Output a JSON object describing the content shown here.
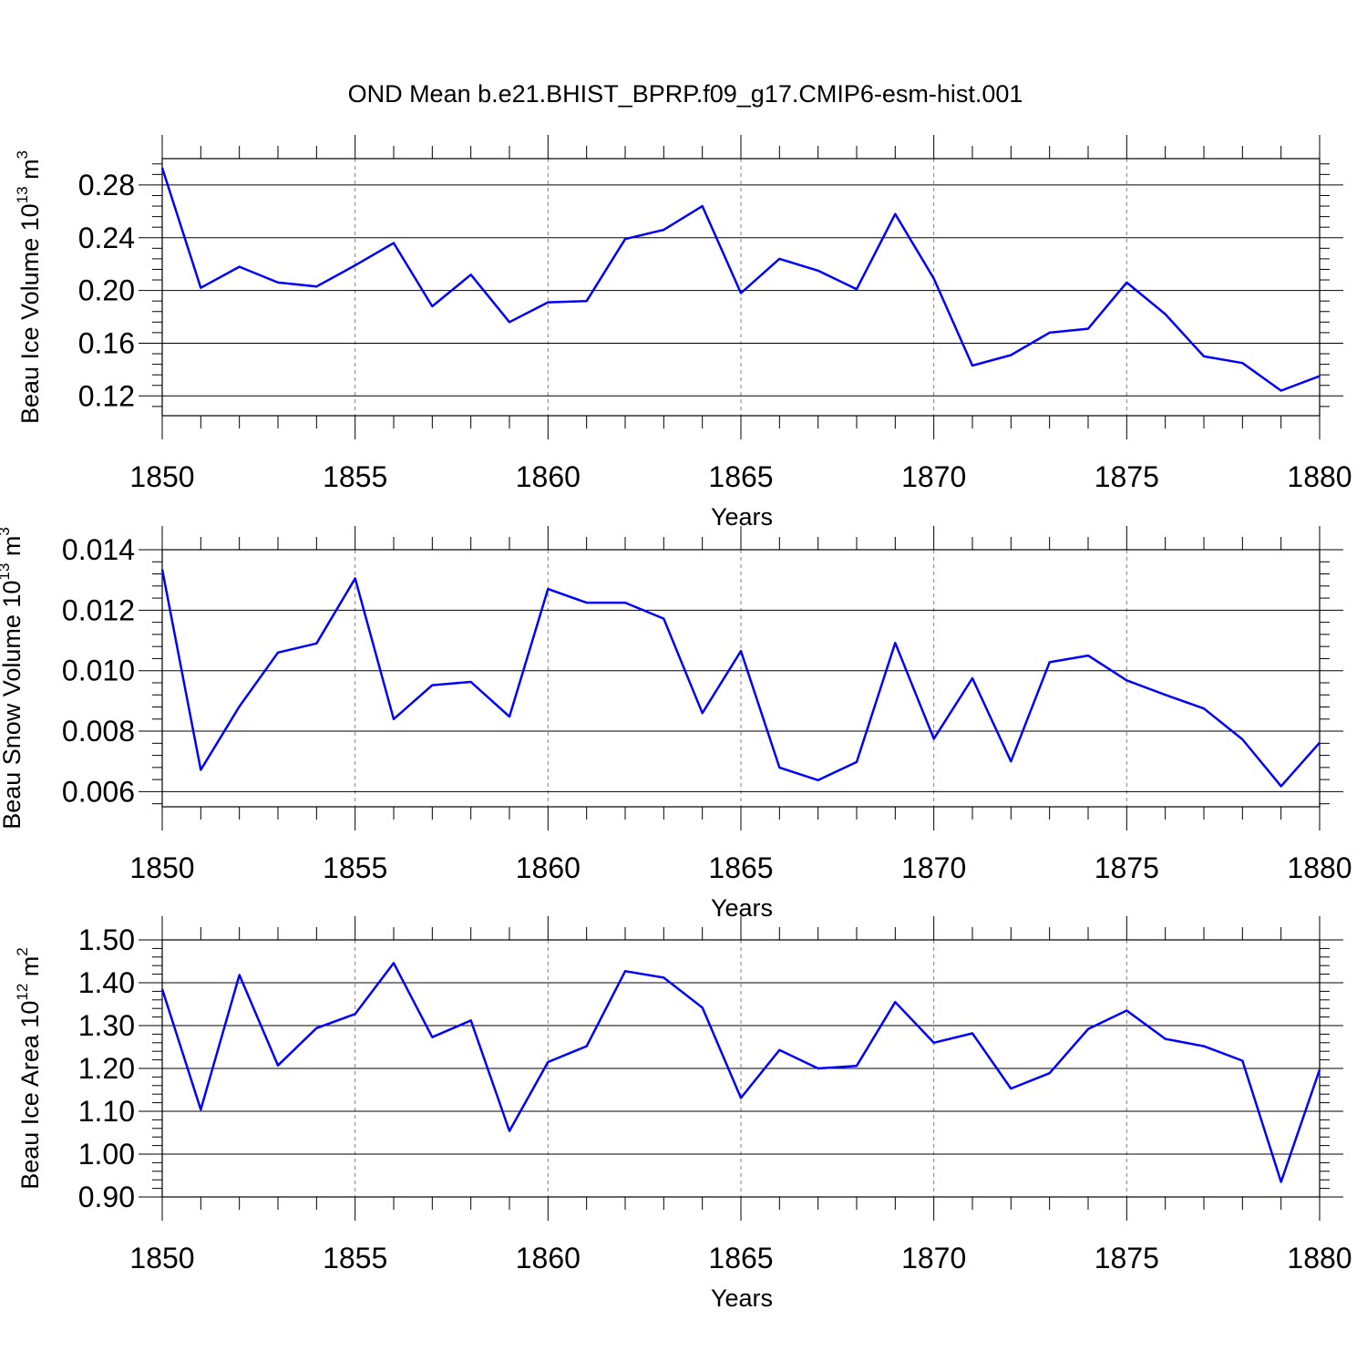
{
  "title": "OND Mean b.e21.BHIST_BPRP.f09_g17.CMIP6-esm-hist.001",
  "colors": {
    "line": "#0000ff",
    "axis": "#000000",
    "grid": "#808080"
  },
  "chart_data": [
    {
      "type": "line",
      "xlabel": "Years",
      "ylabel": {
        "text": "Beau Ice Volume 10",
        "sup": "13",
        "unit": " m",
        "unit_sup": "3"
      },
      "xlim": [
        1850,
        1880
      ],
      "ylim": [
        0.105,
        0.3
      ],
      "xticks": [
        "1850",
        "1855",
        "1860",
        "1865",
        "1870",
        "1875",
        "1880"
      ],
      "yticks": [
        "0.12",
        "0.16",
        "0.20",
        "0.24",
        "0.28"
      ],
      "grid": "x-dashed",
      "x": [
        1850,
        1851,
        1852,
        1853,
        1854,
        1855,
        1856,
        1857,
        1858,
        1859,
        1860,
        1861,
        1862,
        1863,
        1864,
        1865,
        1866,
        1867,
        1868,
        1869,
        1870,
        1871,
        1872,
        1873,
        1874,
        1875,
        1876,
        1877,
        1878,
        1879,
        1880
      ],
      "values": [
        0.293,
        0.202,
        0.218,
        0.206,
        0.203,
        0.219,
        0.236,
        0.188,
        0.212,
        0.176,
        0.191,
        0.192,
        0.239,
        0.246,
        0.264,
        0.198,
        0.224,
        0.215,
        0.201,
        0.258,
        0.209,
        0.143,
        0.151,
        0.168,
        0.171,
        0.206,
        0.182,
        0.15,
        0.145,
        0.124,
        0.135
      ]
    },
    {
      "type": "line",
      "xlabel": "Years",
      "ylabel": {
        "text": "Beau Snow Volume 10",
        "sup": "13",
        "unit": " m",
        "unit_sup": "3"
      },
      "xlim": [
        1850,
        1880
      ],
      "ylim": [
        0.0055,
        0.014
      ],
      "xticks": [
        "1850",
        "1855",
        "1860",
        "1865",
        "1870",
        "1875",
        "1880"
      ],
      "yticks": [
        "0.006",
        "0.008",
        "0.010",
        "0.012",
        "0.014"
      ],
      "grid": "x-dashed",
      "x": [
        1850,
        1851,
        1852,
        1853,
        1854,
        1855,
        1856,
        1857,
        1858,
        1859,
        1860,
        1861,
        1862,
        1863,
        1864,
        1865,
        1866,
        1867,
        1868,
        1869,
        1870,
        1871,
        1872,
        1873,
        1874,
        1875,
        1876,
        1877,
        1878,
        1879,
        1880
      ],
      "values": [
        0.01335,
        0.00672,
        0.00882,
        0.0106,
        0.0109,
        0.01305,
        0.0084,
        0.00952,
        0.00963,
        0.00848,
        0.0127,
        0.01225,
        0.01225,
        0.01172,
        0.0086,
        0.01065,
        0.0068,
        0.00638,
        0.00698,
        0.01092,
        0.00775,
        0.00975,
        0.007,
        0.01028,
        0.0105,
        0.00968,
        0.0092,
        0.00875,
        0.00773,
        0.00618,
        0.00762
      ]
    },
    {
      "type": "line",
      "xlabel": "Years",
      "ylabel": {
        "text": "Beau Ice Area 10",
        "sup": "12",
        "unit": " m",
        "unit_sup": "2"
      },
      "xlim": [
        1850,
        1880
      ],
      "ylim": [
        0.9,
        1.5
      ],
      "xticks": [
        "1850",
        "1855",
        "1860",
        "1865",
        "1870",
        "1875",
        "1880"
      ],
      "yticks": [
        "0.90",
        "1.00",
        "1.10",
        "1.20",
        "1.30",
        "1.40",
        "1.50"
      ],
      "grid": "x-dashed",
      "x": [
        1850,
        1851,
        1852,
        1853,
        1854,
        1855,
        1856,
        1857,
        1858,
        1859,
        1860,
        1861,
        1862,
        1863,
        1864,
        1865,
        1866,
        1867,
        1868,
        1869,
        1870,
        1871,
        1872,
        1873,
        1874,
        1875,
        1876,
        1877,
        1878,
        1879,
        1880
      ],
      "values": [
        1.385,
        1.104,
        1.418,
        1.207,
        1.294,
        1.327,
        1.446,
        1.273,
        1.312,
        1.054,
        1.215,
        1.252,
        1.427,
        1.412,
        1.342,
        1.131,
        1.243,
        1.2,
        1.206,
        1.355,
        1.26,
        1.282,
        1.153,
        1.189,
        1.292,
        1.335,
        1.269,
        1.252,
        1.218,
        0.935,
        1.197
      ]
    }
  ]
}
